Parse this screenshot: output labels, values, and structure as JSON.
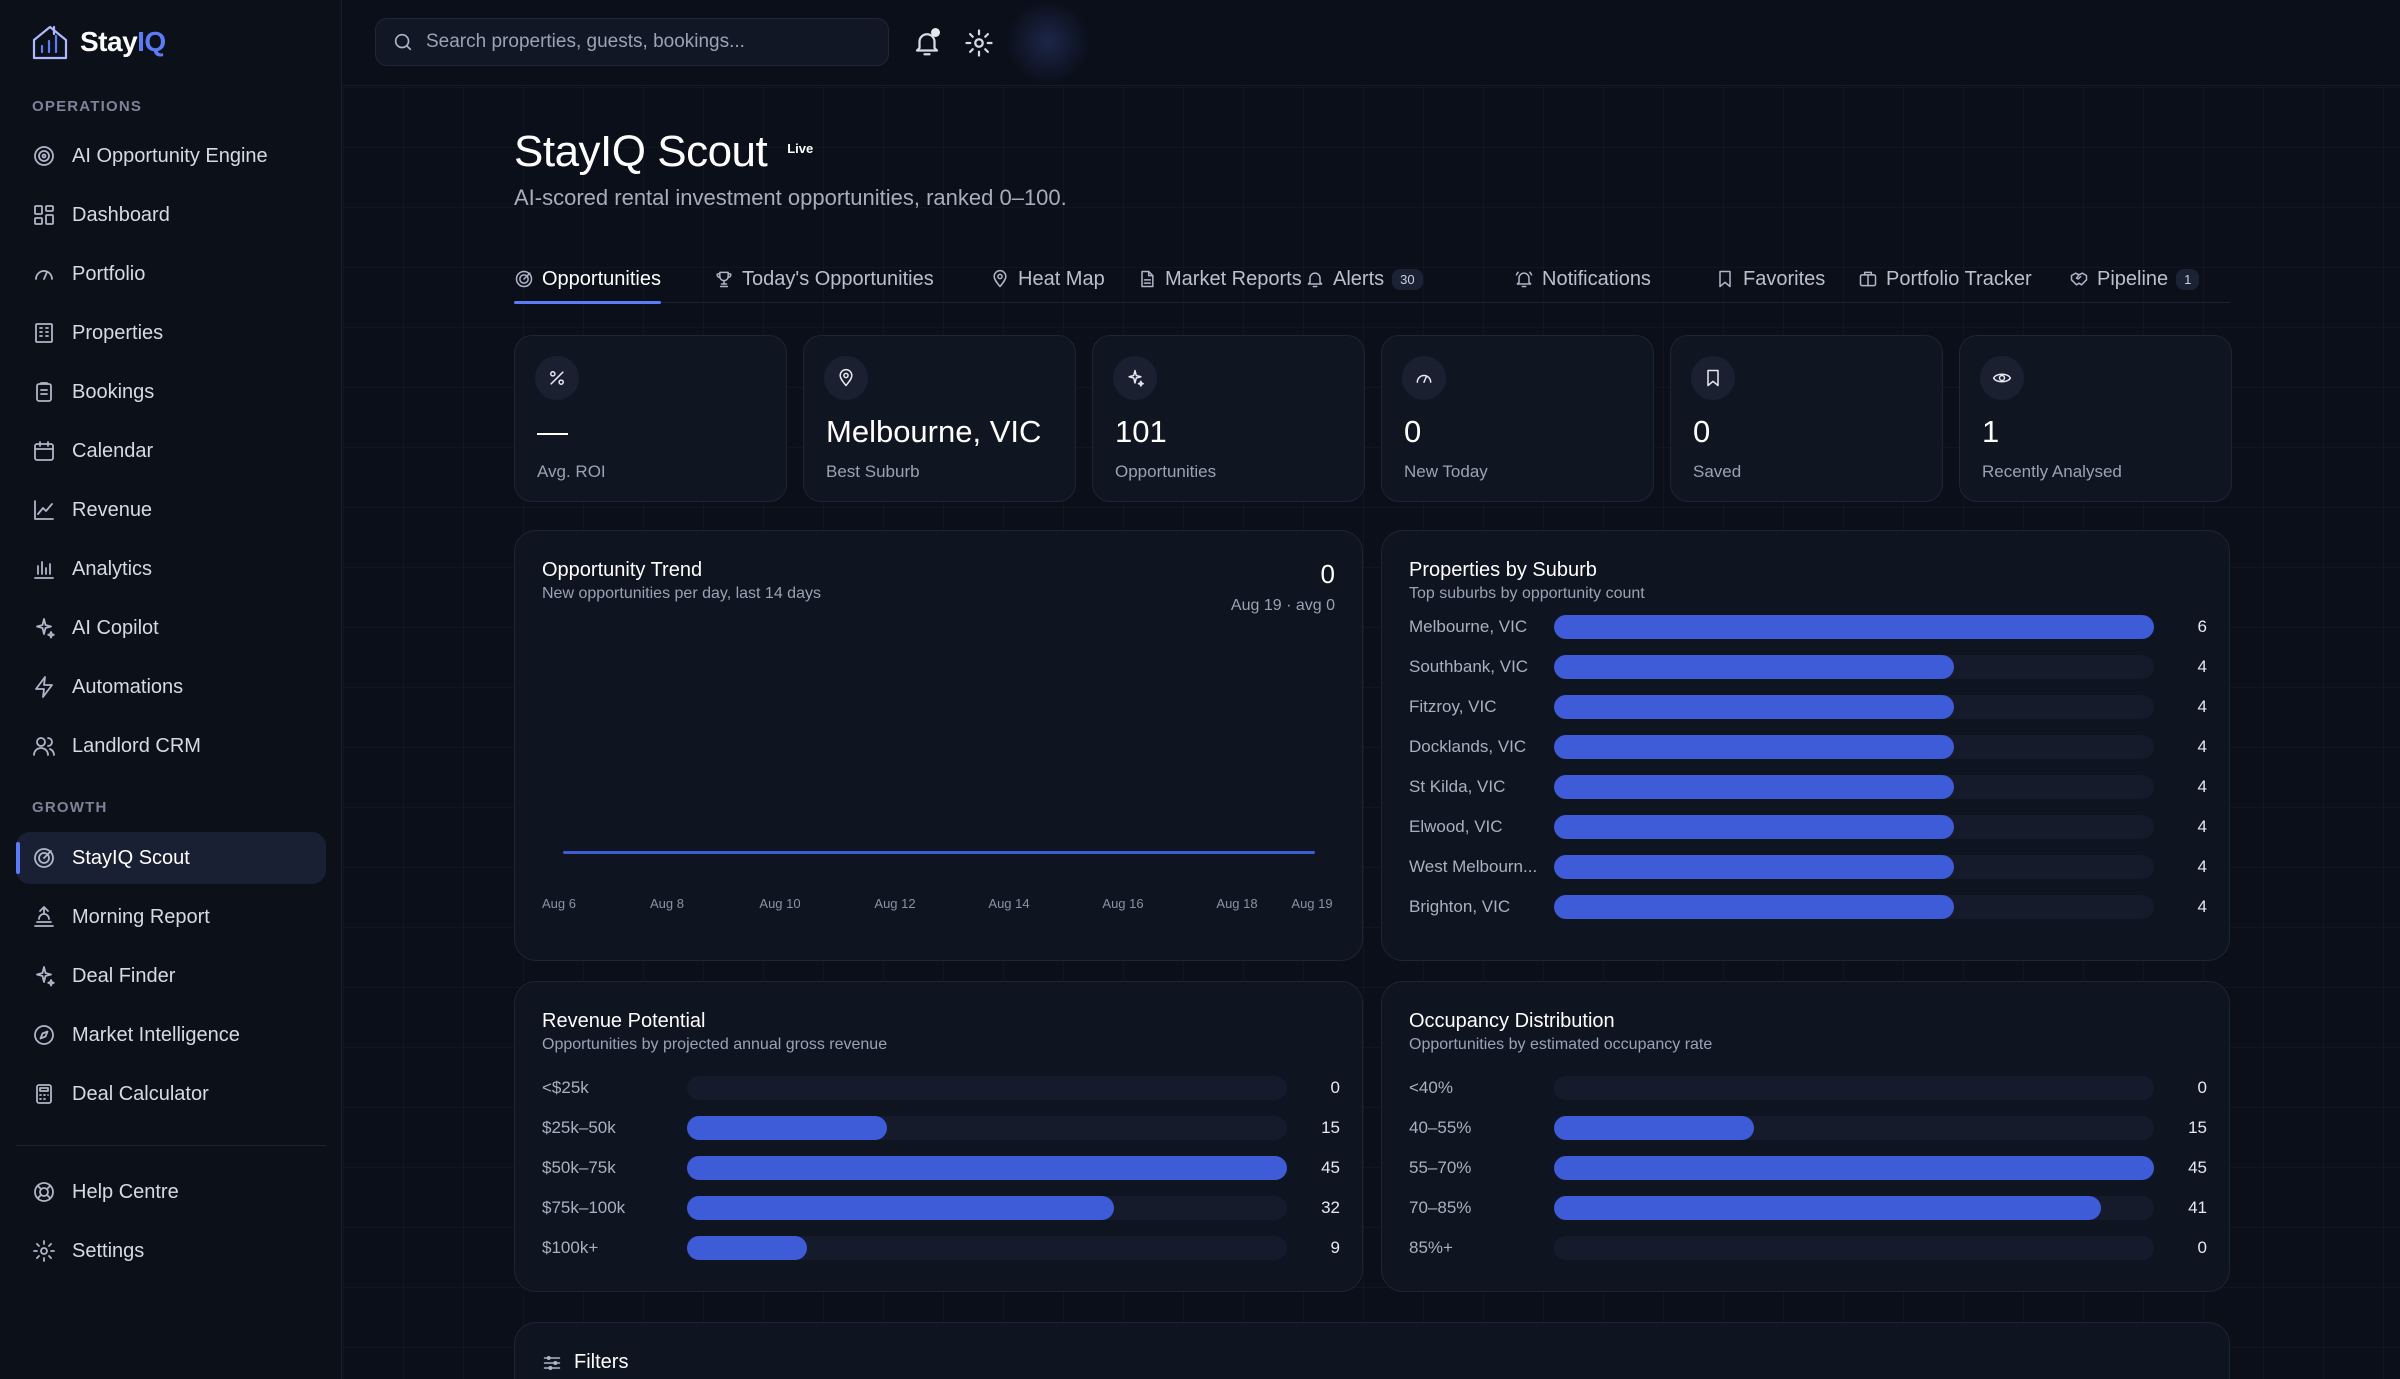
{
  "brand": {
    "name_main": "Stay",
    "name_accent": "IQ"
  },
  "sidebar": {
    "operations_label": "OPERATIONS",
    "growth_label": "GROWTH",
    "operations": [
      {
        "label": "AI Opportunity Engine",
        "icon": "target-icon"
      },
      {
        "label": "Dashboard",
        "icon": "dashboard-icon"
      },
      {
        "label": "Portfolio",
        "icon": "gauge-icon"
      },
      {
        "label": "Properties",
        "icon": "building-icon"
      },
      {
        "label": "Bookings",
        "icon": "clipboard-icon"
      },
      {
        "label": "Calendar",
        "icon": "calendar-icon"
      },
      {
        "label": "Revenue",
        "icon": "line-chart-icon"
      },
      {
        "label": "Analytics",
        "icon": "bar-chart-icon"
      },
      {
        "label": "AI Copilot",
        "icon": "sparkles-icon"
      },
      {
        "label": "Automations",
        "icon": "lightning-icon"
      },
      {
        "label": "Landlord CRM",
        "icon": "users-icon"
      }
    ],
    "growth": [
      {
        "label": "StayIQ Scout",
        "icon": "radar-icon",
        "active": true
      },
      {
        "label": "Morning Report",
        "icon": "sunrise-icon"
      },
      {
        "label": "Deal Finder",
        "icon": "sparkles-icon"
      },
      {
        "label": "Market Intelligence",
        "icon": "compass-icon"
      },
      {
        "label": "Deal Calculator",
        "icon": "calculator-icon"
      }
    ],
    "footer": [
      {
        "label": "Help Centre",
        "icon": "lifebuoy-icon"
      },
      {
        "label": "Settings",
        "icon": "gear-icon"
      }
    ]
  },
  "topbar": {
    "search_placeholder": "Search properties, guests, bookings..."
  },
  "header": {
    "title": "StayIQ Scout",
    "badge": "Live",
    "subtitle": "AI-scored rental investment opportunities, ranked 0–100."
  },
  "tabs": [
    {
      "label": "Opportunities",
      "icon": "radar-icon",
      "active": true
    },
    {
      "label": "Today's Opportunities",
      "icon": "trophy-icon"
    },
    {
      "label": "Heat Map",
      "icon": "map-pin-icon"
    },
    {
      "label": "Market Reports",
      "icon": "document-icon"
    },
    {
      "label": "Alerts",
      "icon": "bell-icon",
      "count": "30"
    },
    {
      "label": "Notifications",
      "icon": "bell-ring-icon"
    },
    {
      "label": "Favorites",
      "icon": "bookmark-icon"
    },
    {
      "label": "Portfolio Tracker",
      "icon": "briefcase-icon"
    },
    {
      "label": "Pipeline",
      "icon": "handshake-icon",
      "count": "1"
    }
  ],
  "stats": [
    {
      "value": "—",
      "label": "Avg. ROI",
      "icon": "percent-icon"
    },
    {
      "value": "Melbourne, VIC",
      "label": "Best Suburb",
      "icon": "map-pin-icon"
    },
    {
      "value": "101",
      "label": "Opportunities",
      "icon": "sparkles-icon"
    },
    {
      "value": "0",
      "label": "New Today",
      "icon": "gauge-icon"
    },
    {
      "value": "0",
      "label": "Saved",
      "icon": "bookmark-icon"
    },
    {
      "value": "1",
      "label": "Recently Analysed",
      "icon": "eye-icon"
    }
  ],
  "trend": {
    "title": "Opportunity Trend",
    "subtitle": "New opportunities per day, last 14 days",
    "value": "0",
    "meta": "Aug 19 · avg 0",
    "ticks": [
      "Aug 6",
      "Aug 8",
      "Aug 10",
      "Aug 12",
      "Aug 14",
      "Aug 16",
      "Aug 18",
      "Aug 19"
    ]
  },
  "suburbs": {
    "title": "Properties by Suburb",
    "subtitle": "Top suburbs by opportunity count"
  },
  "revenue": {
    "title": "Revenue Potential",
    "subtitle": "Opportunities by projected annual gross revenue"
  },
  "occupancy": {
    "title": "Occupancy Distribution",
    "subtitle": "Opportunities by estimated occupancy rate"
  },
  "filters": {
    "label": "Filters"
  },
  "colors": {
    "accent": "#5b7cf6",
    "bar": "#3e5bd8",
    "background": "#0b0f1a"
  },
  "chart_data": [
    {
      "type": "line",
      "title": "Opportunity Trend",
      "x": [
        "Aug 6",
        "Aug 7",
        "Aug 8",
        "Aug 9",
        "Aug 10",
        "Aug 11",
        "Aug 12",
        "Aug 13",
        "Aug 14",
        "Aug 15",
        "Aug 16",
        "Aug 17",
        "Aug 18",
        "Aug 19"
      ],
      "values": [
        0,
        0,
        0,
        0,
        0,
        0,
        0,
        0,
        0,
        0,
        0,
        0,
        0,
        0
      ]
    },
    {
      "type": "bar",
      "title": "Properties by Suburb",
      "categories": [
        "Melbourne, VIC",
        "Southbank, VIC",
        "Fitzroy, VIC",
        "Docklands, VIC",
        "St Kilda, VIC",
        "Elwood, VIC",
        "West Melbourn...",
        "Brighton, VIC"
      ],
      "values": [
        6,
        4,
        4,
        4,
        4,
        4,
        4,
        4
      ],
      "xlim": [
        0,
        6
      ]
    },
    {
      "type": "bar",
      "title": "Revenue Potential",
      "categories": [
        "<$25k",
        "$25k–50k",
        "$50k–75k",
        "$75k–100k",
        "$100k+"
      ],
      "values": [
        0,
        15,
        45,
        32,
        9
      ],
      "xlim": [
        0,
        45
      ]
    },
    {
      "type": "bar",
      "title": "Occupancy Distribution",
      "categories": [
        "<40%",
        "40–55%",
        "55–70%",
        "70–85%",
        "85%+"
      ],
      "values": [
        0,
        15,
        45,
        41,
        0
      ],
      "xlim": [
        0,
        45
      ]
    }
  ]
}
